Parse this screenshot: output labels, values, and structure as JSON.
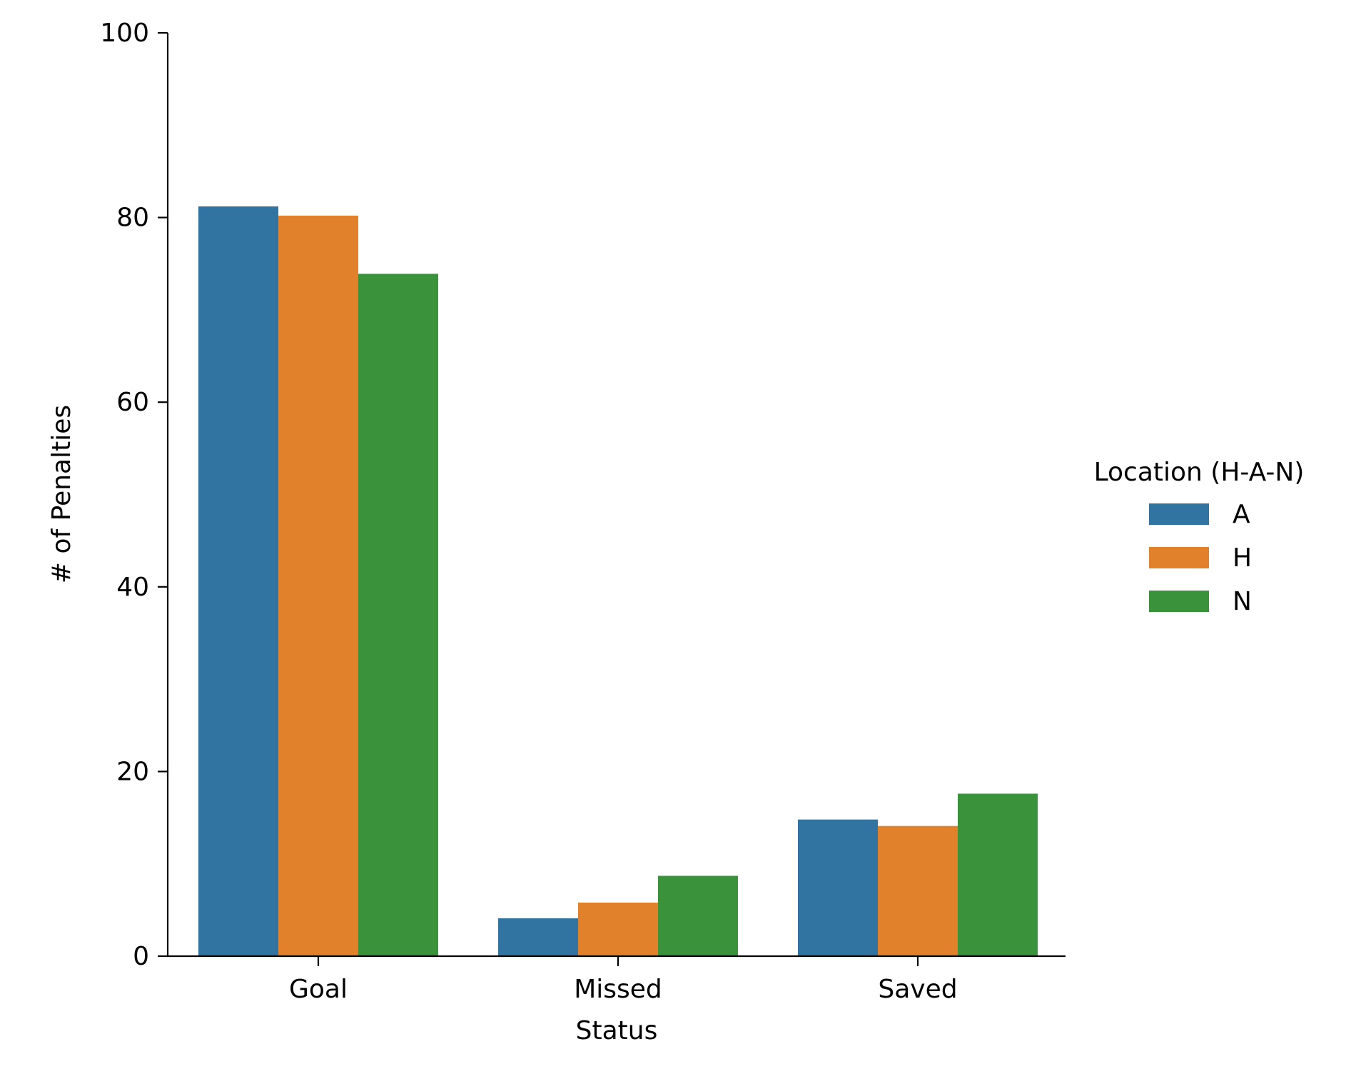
{
  "chart_data": {
    "type": "bar",
    "title": "",
    "xlabel": "Status",
    "ylabel": "# of Penalties",
    "categories": [
      "Goal",
      "Missed",
      "Saved"
    ],
    "series": [
      {
        "name": "A",
        "color": "#3274a1",
        "values": [
          81.2,
          4.1,
          14.8
        ]
      },
      {
        "name": "H",
        "color": "#e1812c",
        "values": [
          80.2,
          5.8,
          14.1
        ]
      },
      {
        "name": "N",
        "color": "#3a923a",
        "values": [
          73.9,
          8.7,
          17.6
        ]
      }
    ],
    "ylim": [
      0,
      100
    ],
    "yticks": [
      0,
      20,
      40,
      60,
      80,
      100
    ],
    "grid": false,
    "legend": {
      "title": "Location (H-A-N)",
      "placement": "right"
    }
  }
}
